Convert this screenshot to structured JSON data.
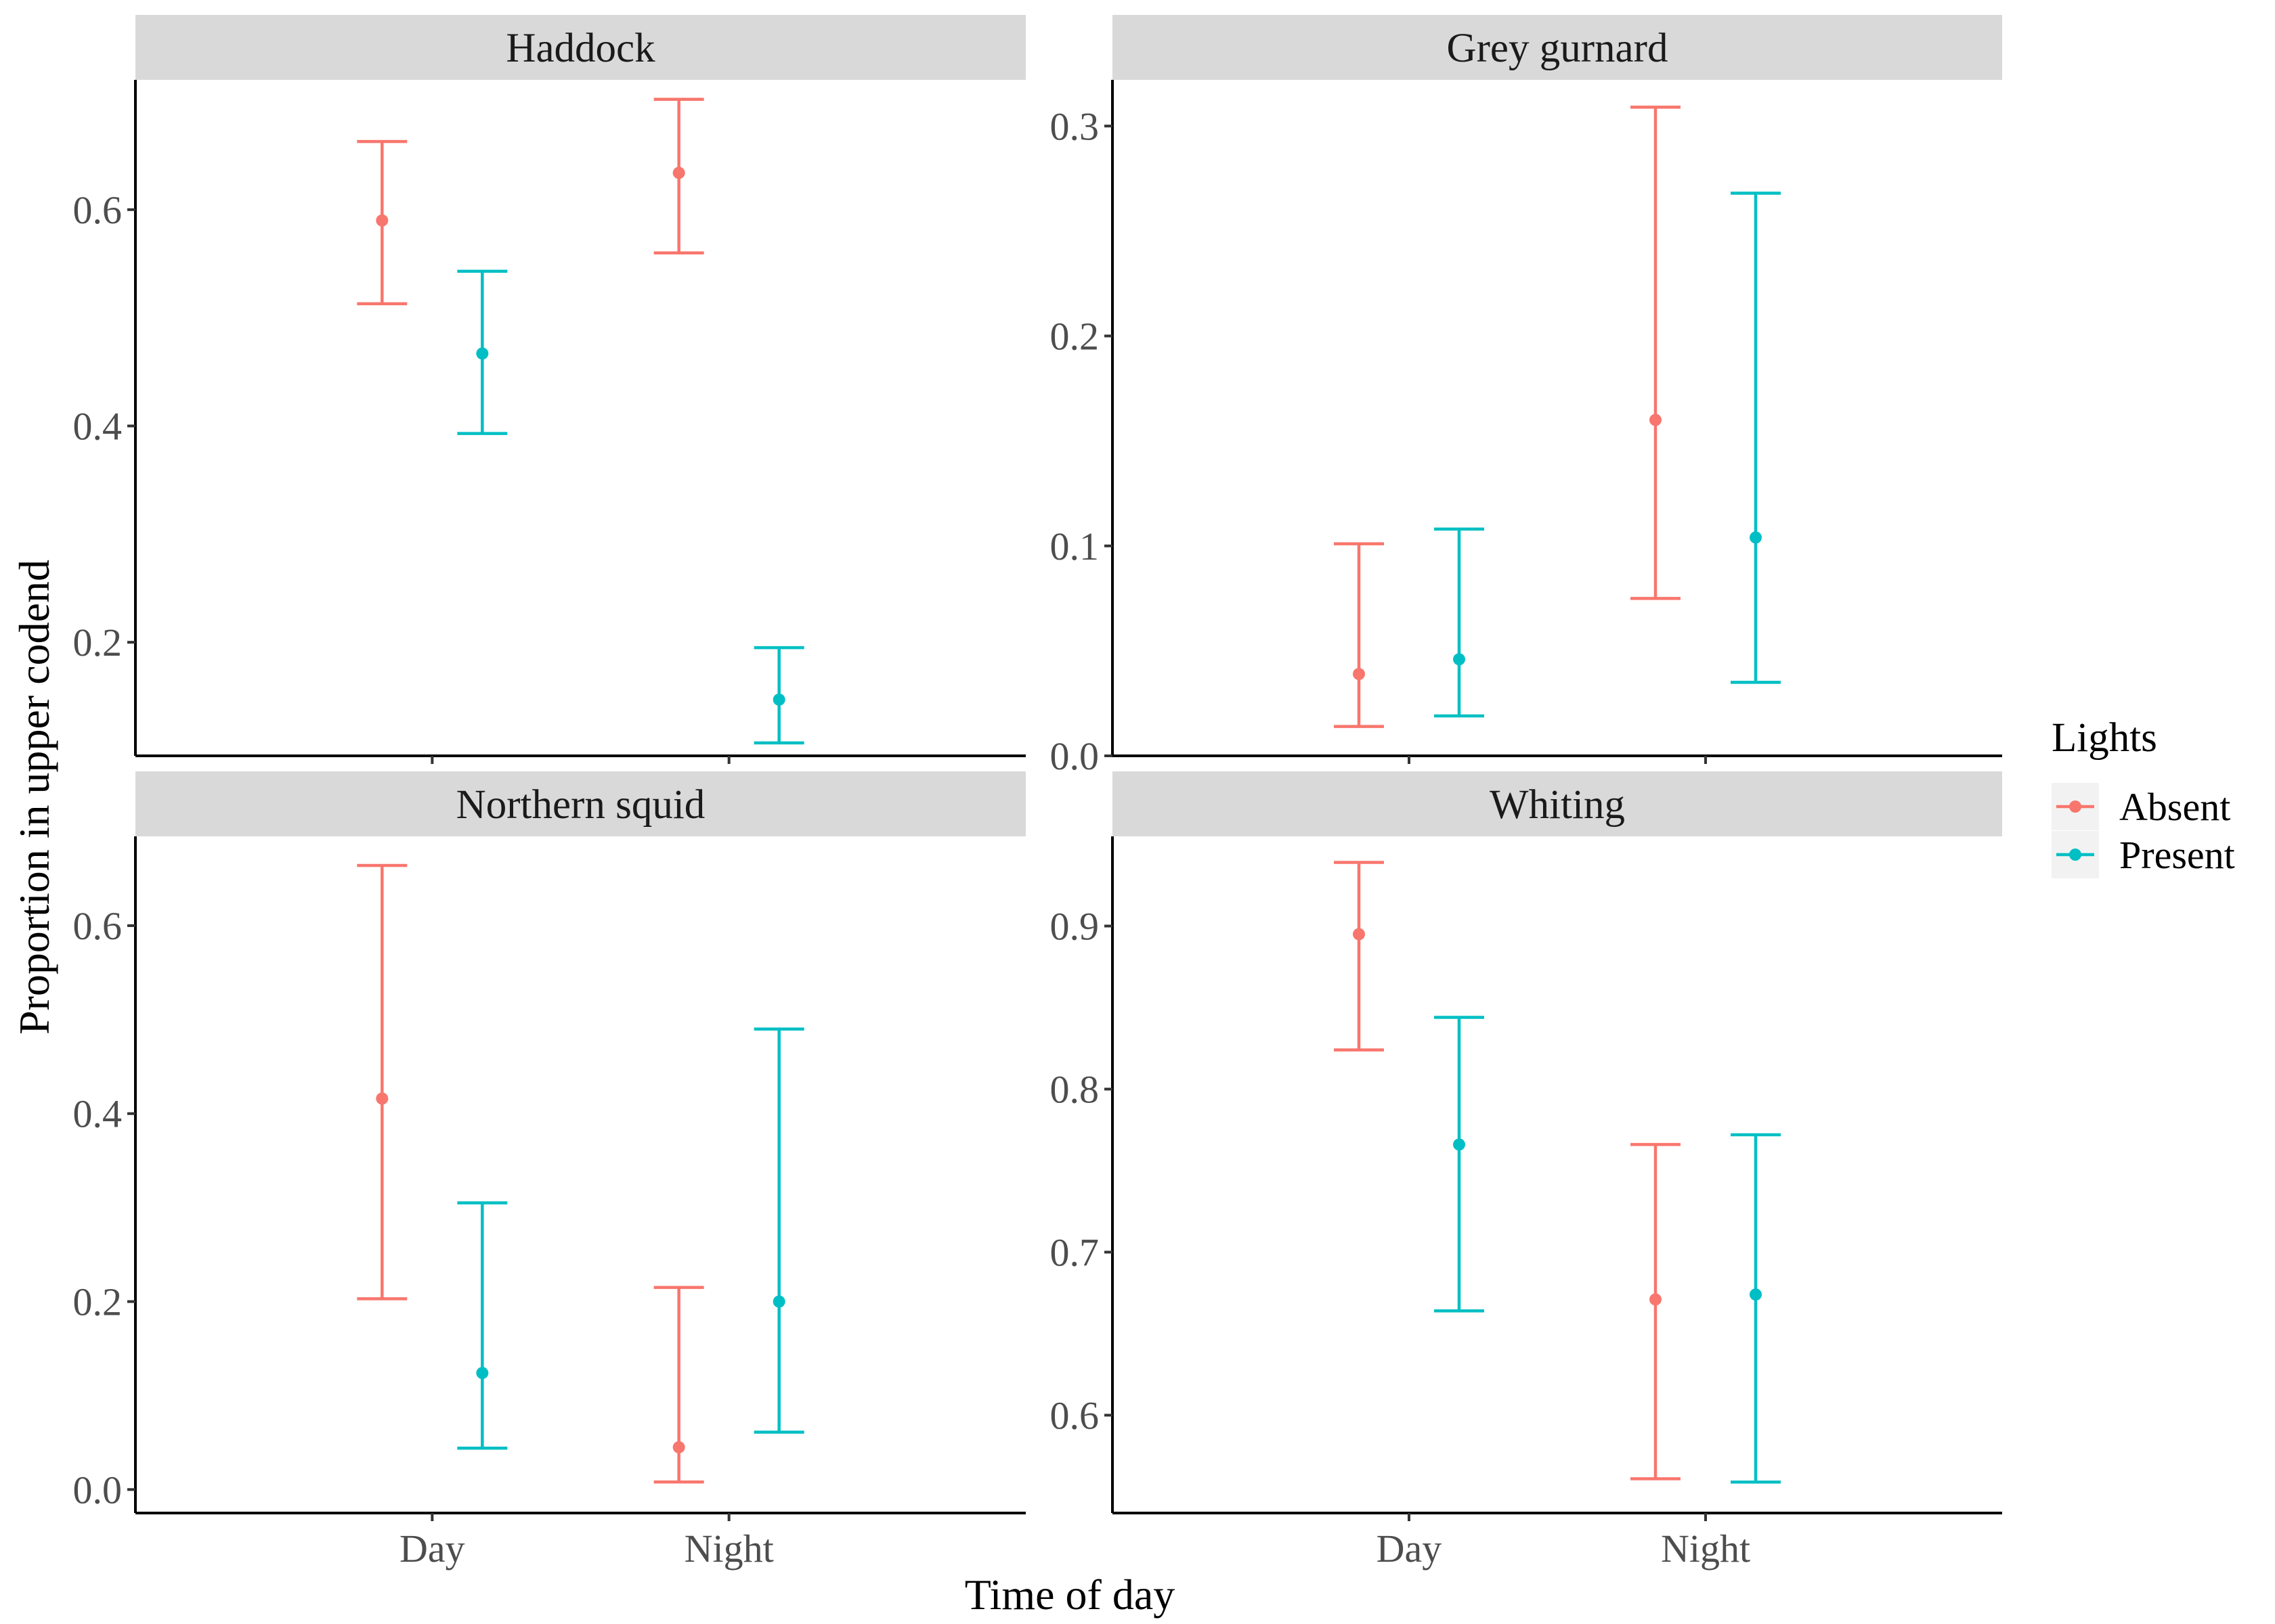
{
  "chart_data": {
    "type": "errorbar",
    "xlabel": "Time of day",
    "ylabel": "Proportion in upper codend",
    "categories": [
      "Day",
      "Night"
    ],
    "legend": {
      "title": "Lights",
      "entries": [
        {
          "name": "Absent",
          "color": "#F8766D"
        },
        {
          "name": "Present",
          "color": "#00BFC4"
        }
      ],
      "placement": "right"
    },
    "grid": false,
    "panels": [
      {
        "title": "Haddock",
        "ylim": [
          0.095,
          0.72
        ],
        "yticks": [
          0.2,
          0.4,
          0.6
        ],
        "ytick_labels": [
          "0.2",
          "0.4",
          "0.6"
        ],
        "series": [
          {
            "name": "Absent",
            "color": "#F8766D",
            "points": [
              {
                "x": "Day",
                "y": 0.59,
                "lower": 0.513,
                "upper": 0.663
              },
              {
                "x": "Night",
                "y": 0.634,
                "lower": 0.56,
                "upper": 0.702
              }
            ]
          },
          {
            "name": "Present",
            "color": "#00BFC4",
            "points": [
              {
                "x": "Day",
                "y": 0.467,
                "lower": 0.393,
                "upper": 0.543
              },
              {
                "x": "Night",
                "y": 0.147,
                "lower": 0.107,
                "upper": 0.195
              }
            ]
          }
        ]
      },
      {
        "title": "Grey gurnard",
        "ylim": [
          0.0,
          0.322
        ],
        "yticks": [
          0.0,
          0.1,
          0.2,
          0.3
        ],
        "ytick_labels": [
          "0.0",
          "0.1",
          "0.2",
          "0.3"
        ],
        "series": [
          {
            "name": "Absent",
            "color": "#F8766D",
            "points": [
              {
                "x": "Day",
                "y": 0.039,
                "lower": 0.014,
                "upper": 0.101
              },
              {
                "x": "Night",
                "y": 0.16,
                "lower": 0.075,
                "upper": 0.309
              }
            ]
          },
          {
            "name": "Present",
            "color": "#00BFC4",
            "points": [
              {
                "x": "Day",
                "y": 0.046,
                "lower": 0.019,
                "upper": 0.108
              },
              {
                "x": "Night",
                "y": 0.104,
                "lower": 0.035,
                "upper": 0.268
              }
            ]
          }
        ]
      },
      {
        "title": "Northern squid",
        "ylim": [
          -0.025,
          0.695
        ],
        "yticks": [
          0.0,
          0.2,
          0.4,
          0.6
        ],
        "ytick_labels": [
          "0.0",
          "0.2",
          "0.4",
          "0.6"
        ],
        "series": [
          {
            "name": "Absent",
            "color": "#F8766D",
            "points": [
              {
                "x": "Day",
                "y": 0.416,
                "lower": 0.203,
                "upper": 0.664
              },
              {
                "x": "Night",
                "y": 0.045,
                "lower": 0.008,
                "upper": 0.215
              }
            ]
          },
          {
            "name": "Present",
            "color": "#00BFC4",
            "points": [
              {
                "x": "Day",
                "y": 0.124,
                "lower": 0.044,
                "upper": 0.305
              },
              {
                "x": "Night",
                "y": 0.2,
                "lower": 0.061,
                "upper": 0.49
              }
            ]
          }
        ]
      },
      {
        "title": "Whiting",
        "ylim": [
          0.54,
          0.955
        ],
        "yticks": [
          0.6,
          0.7,
          0.8,
          0.9
        ],
        "ytick_labels": [
          "0.6",
          "0.7",
          "0.8",
          "0.9"
        ],
        "series": [
          {
            "name": "Absent",
            "color": "#F8766D",
            "points": [
              {
                "x": "Day",
                "y": 0.895,
                "lower": 0.824,
                "upper": 0.939
              },
              {
                "x": "Night",
                "y": 0.671,
                "lower": 0.561,
                "upper": 0.766
              }
            ]
          },
          {
            "name": "Present",
            "color": "#00BFC4",
            "points": [
              {
                "x": "Day",
                "y": 0.766,
                "lower": 0.664,
                "upper": 0.844
              },
              {
                "x": "Night",
                "y": 0.674,
                "lower": 0.559,
                "upper": 0.772
              }
            ]
          }
        ]
      }
    ]
  }
}
